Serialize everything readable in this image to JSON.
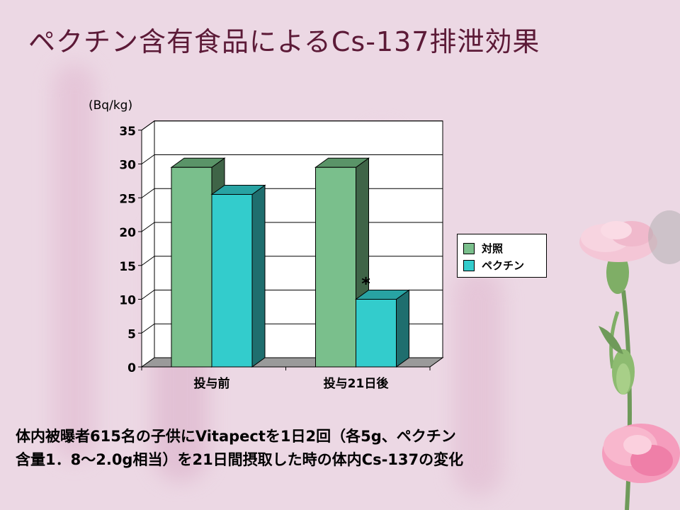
{
  "slide": {
    "title": "ペクチン含有食品によるCs-137排泄効果",
    "caption_lines": [
      "体内被曝者615名の子供にVitapectを1日2回（各5g、ペクチン",
      "含量1．8～2.0g相当）を21日間摂取した時の体内Cs-137の変化"
    ]
  },
  "chart_data": {
    "type": "bar",
    "ylabel": "(Bq/kg)",
    "ylim": [
      0,
      35
    ],
    "yticks": [
      0,
      5,
      10,
      15,
      20,
      25,
      30,
      35
    ],
    "categories": [
      "投与前",
      "投与21日後"
    ],
    "series": [
      {
        "name": "対照",
        "values": [
          29.5,
          29.5
        ],
        "color": "#7abf8c",
        "side_color": "#3f6447",
        "top_color": "#5a9468"
      },
      {
        "name": "ペクチン",
        "values": [
          25.5,
          10
        ],
        "color": "#33cccc",
        "side_color": "#1f6e6e",
        "top_color": "#28a3a3"
      }
    ],
    "annotations": [
      {
        "text": "*",
        "category": 1,
        "series": 1
      }
    ],
    "grid": true,
    "legend_position": "right",
    "style": "3d-column"
  }
}
